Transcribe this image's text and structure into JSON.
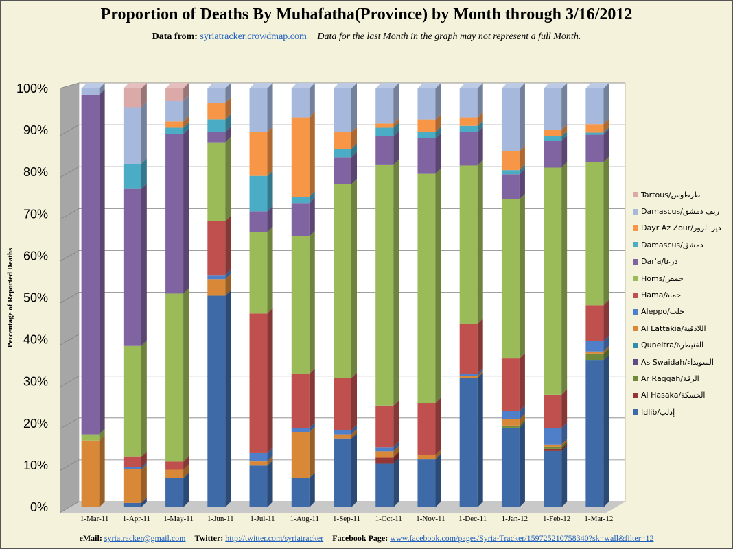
{
  "header": {
    "title": "Proportion of Deaths By Muhafatha(Province) by Month through 3/16/2012",
    "data_from_label": "Data from:",
    "data_from_link": "syriatracker.crowdmap.com",
    "note": "Data for the last Month in the graph may not represent a full Month."
  },
  "footer": {
    "email_label": "eMail:",
    "email": "syriatracker@gmail.com",
    "twitter_label": "Twitter:",
    "twitter": "http://twitter.com/syriatracker",
    "facebook_label": "Facebook Page:",
    "facebook": "www.facebook.com/pages/Syria-Tracker/159725210758340?sk=wall&filter=12"
  },
  "colors": {
    "background": "#f4f2da",
    "plot_back": "#ffffff",
    "wall": "#a6a6a6"
  },
  "chart_data": {
    "type": "bar",
    "stacked": "percent",
    "three_d": true,
    "ylabel": "Percentage of Reported Deaths",
    "ylim": [
      0,
      100
    ],
    "yticks": [
      "0%",
      "10%",
      "20%",
      "30%",
      "40%",
      "50%",
      "60%",
      "70%",
      "80%",
      "90%",
      "100%"
    ],
    "grid": true,
    "legend_position": "right",
    "categories": [
      "1-Mar-11",
      "1-Apr-11",
      "1-May-11",
      "1-Jun-11",
      "1-Jul-11",
      "1-Aug-11",
      "1-Sep-11",
      "1-Oct-11",
      "1-Nov-11",
      "1-Dec-11",
      "1-Jan-12",
      "1-Feb-12",
      "1-Mar-12"
    ],
    "series": [
      {
        "name": "Idlib/إدلب",
        "color": "#3e6aa8",
        "values": [
          0,
          1,
          7,
          51,
          10,
          7,
          16.5,
          10.5,
          11.5,
          31,
          19,
          13.5,
          35
        ]
      },
      {
        "name": "Al Hasaka/الحسكة",
        "color": "#963535",
        "values": [
          0,
          0,
          0,
          0,
          0,
          0,
          0,
          1.5,
          0,
          0,
          0,
          0.5,
          0
        ]
      },
      {
        "name": "Ar Raqqah/الرقة",
        "color": "#6f8a3a",
        "values": [
          0,
          0,
          0,
          0,
          0,
          0,
          0,
          0,
          0,
          0,
          0.5,
          0.5,
          1.5
        ]
      },
      {
        "name": "As Swaidah/السويداء",
        "color": "#5e4a86",
        "values": [
          0,
          0,
          0,
          0,
          0,
          0,
          0,
          0,
          0,
          0,
          0,
          0,
          0
        ]
      },
      {
        "name": "Quneitra/القنيطرة",
        "color": "#2f8ea8",
        "values": [
          0,
          0,
          0,
          0,
          0,
          0,
          0,
          0,
          0,
          0,
          0,
          0,
          0
        ]
      },
      {
        "name": "Al Lattakia/اللاذقية",
        "color": "#d98838",
        "values": [
          16,
          8,
          2,
          4,
          1,
          11,
          1,
          1.5,
          1,
          0.5,
          1.5,
          0.5,
          0.5
        ]
      },
      {
        "name": "Aleppo/حلب",
        "color": "#4f7fc9",
        "values": [
          0,
          0.5,
          0,
          1,
          2,
          1,
          1,
          1,
          0,
          0.5,
          2,
          4,
          2.5
        ]
      },
      {
        "name": "Hama/حماة",
        "color": "#c0504d",
        "values": [
          0,
          2.5,
          2,
          13,
          33.5,
          13,
          12.5,
          10,
          12.5,
          12,
          12.5,
          8,
          8.5
        ]
      },
      {
        "name": "Homs/حمص",
        "color": "#9bbb59",
        "values": [
          1.5,
          26.5,
          40.5,
          19,
          19.5,
          33,
          46.5,
          58,
          55,
          38,
          38,
          54.5,
          34
        ]
      },
      {
        "name": "Dar'a/درعا",
        "color": "#8064a2",
        "values": [
          81.5,
          37.5,
          38.5,
          2.5,
          5,
          8,
          6.5,
          7,
          8.5,
          8,
          6,
          6.5,
          6.5
        ]
      },
      {
        "name": "Damascus/دمشق",
        "color": "#4bacc6",
        "values": [
          0,
          6,
          1.5,
          3,
          8.5,
          1.5,
          2,
          2,
          1.5,
          1.5,
          1,
          1,
          0.5
        ]
      },
      {
        "name": "Dayr Az Zour/دير الزور",
        "color": "#f79646",
        "values": [
          0,
          0,
          1.5,
          4,
          10.5,
          19,
          4,
          1,
          3,
          2,
          4.5,
          1.5,
          2
        ]
      },
      {
        "name": "Damascus/ريف دمشق",
        "color": "#a6b8dc",
        "values": [
          1.5,
          13.5,
          5,
          3.5,
          10.5,
          7,
          10.5,
          8.5,
          7.5,
          7,
          15,
          10,
          8.5
        ]
      },
      {
        "name": "Tartous/طرطوس",
        "color": "#dba9a8",
        "values": [
          0,
          4.5,
          3,
          0,
          0,
          0,
          0,
          0,
          0,
          0,
          0,
          0,
          0
        ]
      }
    ]
  }
}
